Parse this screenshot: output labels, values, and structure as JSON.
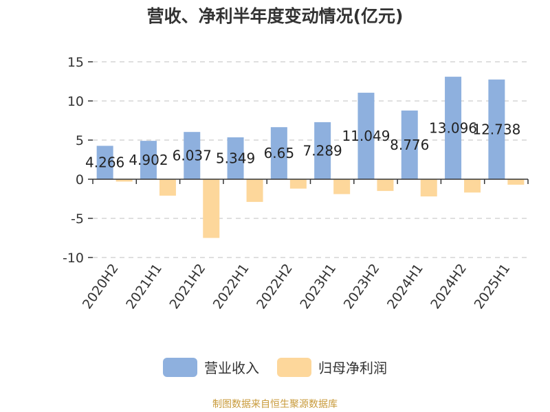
{
  "title": "营收、净利半年度变动情况(亿元)",
  "source": "制图数据来自恒生聚源数据库",
  "colors": {
    "revenue": "#8eb0de",
    "profit": "#fdd79b"
  },
  "chart_data": {
    "type": "bar",
    "title": "营收、净利半年度变动情况(亿元)",
    "categories": [
      "2020H2",
      "2021H1",
      "2021H2",
      "2022H1",
      "2022H2",
      "2023H1",
      "2023H2",
      "2024H1",
      "2024H2",
      "2025H1"
    ],
    "series": [
      {
        "name": "营业收入",
        "values": [
          4.266,
          4.902,
          6.037,
          5.349,
          6.65,
          7.289,
          11.049,
          8.776,
          13.096,
          12.738
        ],
        "labels": [
          "4.266",
          "4.902",
          "6.037",
          "5.349",
          "6.65",
          "7.289",
          "11.049",
          "8.776",
          "13.096",
          "12.738"
        ]
      },
      {
        "name": "归母净利润",
        "values": [
          -0.3,
          -2.1,
          -7.5,
          -2.9,
          -1.2,
          -1.9,
          -1.5,
          -2.2,
          -1.7,
          -0.7
        ]
      }
    ],
    "yticks": [
      15,
      10,
      5,
      0,
      -5,
      -10
    ],
    "ylim": [
      -10,
      15
    ],
    "grid": true,
    "legend": "bottom-center"
  }
}
